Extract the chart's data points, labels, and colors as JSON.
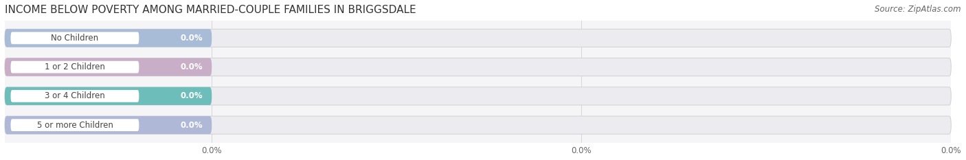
{
  "title": "INCOME BELOW POVERTY AMONG MARRIED-COUPLE FAMILIES IN BRIGGSDALE",
  "source": "Source: ZipAtlas.com",
  "categories": [
    "No Children",
    "1 or 2 Children",
    "3 or 4 Children",
    "5 or more Children"
  ],
  "values": [
    0.0,
    0.0,
    0.0,
    0.0
  ],
  "bar_colors": [
    "#a8bcd8",
    "#c9aec8",
    "#6dbdba",
    "#b0b8d8"
  ],
  "bar_bg_color": "#ebebf0",
  "white_pill_color": "#ffffff",
  "xlim_data": [
    -28,
    100
  ],
  "title_fontsize": 11,
  "source_fontsize": 8.5,
  "label_fontsize": 8.5,
  "value_fontsize": 8.5,
  "tick_fontsize": 8.5,
  "background_color": "#ffffff",
  "plot_bg_color": "#f5f5f8",
  "grid_color": "#d0d0d8",
  "label_color": "#444444",
  "value_color": "#ffffff",
  "tick_color": "#666666"
}
